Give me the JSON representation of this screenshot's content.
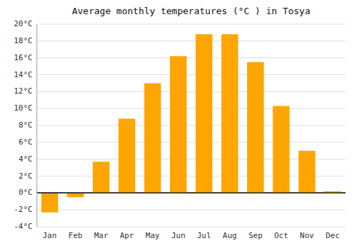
{
  "chart_data": {
    "type": "bar",
    "title": "Average monthly temperatures (°C ) in Tosya",
    "categories": [
      "Jan",
      "Feb",
      "Mar",
      "Apr",
      "May",
      "Jun",
      "Jul",
      "Aug",
      "Sep",
      "Oct",
      "Nov",
      "Dec"
    ],
    "values": [
      -2.3,
      -0.5,
      3.7,
      8.8,
      13.0,
      16.2,
      18.8,
      18.8,
      15.5,
      10.3,
      5.0,
      0.2
    ],
    "color": "#FFA500",
    "ylim": [
      -4,
      20
    ],
    "yticks": [
      {
        "value": -4,
        "label": "-4°C"
      },
      {
        "value": -2,
        "label": "-2°C"
      },
      {
        "value": 0,
        "label": "0°C"
      },
      {
        "value": 2,
        "label": "2°C"
      },
      {
        "value": 4,
        "label": "4°C"
      },
      {
        "value": 6,
        "label": "6°C"
      },
      {
        "value": 8,
        "label": "8°C"
      },
      {
        "value": 10,
        "label": "10°C"
      },
      {
        "value": 12,
        "label": "12°C"
      },
      {
        "value": 14,
        "label": "14°C"
      },
      {
        "value": 16,
        "label": "16°C"
      },
      {
        "value": 18,
        "label": "18°C"
      },
      {
        "value": 20,
        "label": "20°C"
      }
    ],
    "grid": true
  }
}
